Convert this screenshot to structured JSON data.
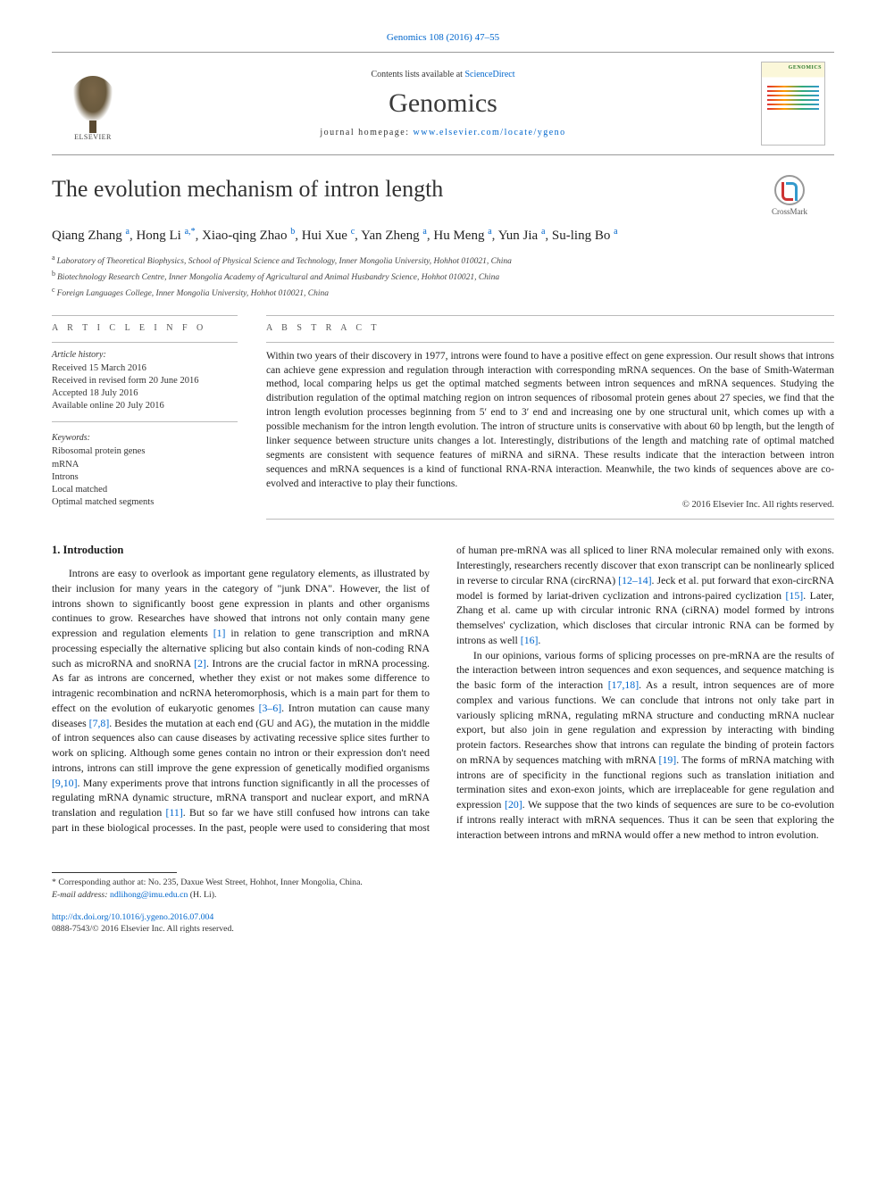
{
  "top_ref": {
    "journal": "Genomics",
    "vol_pages": "108 (2016) 47–55",
    "link_text": "Genomics 108 (2016) 47–55"
  },
  "header": {
    "contents_prefix": "Contents lists available at ",
    "contents_link": "ScienceDirect",
    "journal_name": "Genomics",
    "homepage_prefix": "journal homepage: ",
    "homepage_link": "www.elsevier.com/locate/ygeno",
    "publisher_label": "ELSEVIER",
    "cover_label": "GENOMICS"
  },
  "crossmark_label": "CrossMark",
  "title": "The evolution mechanism of intron length",
  "authors": [
    {
      "name": "Qiang Zhang",
      "aff": "a"
    },
    {
      "name": "Hong Li",
      "aff": "a",
      "corr": true
    },
    {
      "name": "Xiao-qing Zhao",
      "aff": "b"
    },
    {
      "name": "Hui Xue",
      "aff": "c"
    },
    {
      "name": "Yan Zheng",
      "aff": "a"
    },
    {
      "name": "Hu Meng",
      "aff": "a"
    },
    {
      "name": "Yun Jia",
      "aff": "a"
    },
    {
      "name": "Su-ling Bo",
      "aff": "a"
    }
  ],
  "affiliations": {
    "a": "Laboratory of Theoretical Biophysics, School of Physical Science and Technology, Inner Mongolia University, Hohhot 010021, China",
    "b": "Biotechnology Research Centre, Inner Mongolia Academy of Agricultural and Animal Husbandry Science, Hohhot 010021, China",
    "c": "Foreign Languages College, Inner Mongolia University, Hohhot 010021, China"
  },
  "article_info_label": "A R T I C L E   I N F O",
  "abstract_label": "A B S T R A C T",
  "history": {
    "head": "Article history:",
    "received": "Received 15 March 2016",
    "revised": "Received in revised form 20 June 2016",
    "accepted": "Accepted 18 July 2016",
    "online": "Available online 20 July 2016"
  },
  "keywords": {
    "head": "Keywords:",
    "items": [
      "Ribosomal protein genes",
      "mRNA",
      "Introns",
      "Local matched",
      "Optimal matched segments"
    ]
  },
  "abstract_text": "Within two years of their discovery in 1977, introns were found to have a positive effect on gene expression. Our result shows that introns can achieve gene expression and regulation through interaction with corresponding mRNA sequences. On the base of Smith-Waterman method, local comparing helps us get the optimal matched segments between intron sequences and mRNA sequences. Studying the distribution regulation of the optimal matching region on intron sequences of ribosomal protein genes about 27 species, we find that the intron length evolution processes beginning from 5′ end to 3′ end and increasing one by one structural unit, which comes up with a possible mechanism for the intron length evolution. The intron of structure units is conservative with about 60 bp length, but the length of linker sequence between structure units changes a lot. Interestingly, distributions of the length and matching rate of optimal matched segments are consistent with sequence features of miRNA and siRNA. These results indicate that the interaction between intron sequences and mRNA sequences is a kind of functional RNA-RNA interaction. Meanwhile, the two kinds of sequences above are co-evolved and interactive to play their functions.",
  "copyright": "© 2016 Elsevier Inc. All rights reserved.",
  "intro_heading": "1. Introduction",
  "body": {
    "p1a": "Introns are easy to overlook as important gene regulatory elements, as illustrated by their inclusion for many years in the category of \"junk DNA\". However, the list of introns shown to significantly boost gene expression in plants and other organisms continues to grow. Researches have showed that introns not only contain many gene expression and regulation elements ",
    "r1": "[1]",
    "p1b": " in relation to gene transcription and mRNA processing especially the alternative splicing but also contain kinds of non-coding RNA such as microRNA and snoRNA ",
    "r2": "[2]",
    "p1c": ". Introns are the crucial factor in mRNA processing. As far as introns are concerned, whether they exist or not makes some difference to intragenic recombination and ncRNA heteromorphosis, which is a main part for them to effect on the evolution of eukaryotic genomes ",
    "r3_6": "[3–6]",
    "p1d": ". Intron mutation can cause many diseases ",
    "r7_8": "[7,8]",
    "p1e": ". Besides the mutation at each end (GU and AG), the mutation in the middle of intron sequences also can cause diseases by activating recessive splice sites further to work on splicing. Although some genes contain no intron or their expression don't need introns, introns can still improve the gene expression of genetically modified organisms ",
    "r9_10": "[9,10]",
    "p1f": ". Many experiments prove that introns function significantly in all the processes of regulating mRNA dynamic structure, mRNA transport and nuclear export, and mRNA translation and regulation ",
    "r11": "[11]",
    "p1g": ". But so far we have still confused how introns can take part in these biological processes. In the past, people were used to considering that most of human pre-mRNA was all spliced to liner RNA molecular remained only with exons. Interestingly, researchers recently discover that exon transcript can be nonlinearly spliced in reverse to circular RNA (circRNA) ",
    "r12_14": "[12–14]",
    "p1h": ". Jeck et al. put forward that exon-circRNA model is formed by lariat-driven cyclization and introns-paired cyclization ",
    "r15": "[15]",
    "p1i": ". Later, Zhang et al. came up with circular intronic RNA (ciRNA) model formed by introns themselves' cyclization, which discloses that circular intronic RNA can be formed by introns as well ",
    "r16": "[16]",
    "p1j": ".",
    "p2a": "In our opinions, various forms of splicing processes on pre-mRNA are the results of the interaction between intron sequences and exon sequences, and sequence matching is the basic form of the interaction ",
    "r17_18": "[17,18]",
    "p2b": ". As a result, intron sequences are of more complex and various functions. We can conclude that introns not only take part in variously splicing mRNA, regulating mRNA structure and conducting mRNA nuclear export, but also join in gene regulation and expression by interacting with binding protein factors. Researches show that introns can regulate the binding of protein factors on mRNA by sequences matching with mRNA ",
    "r19": "[19]",
    "p2c": ". The forms of mRNA matching with introns are of specificity in the functional regions such as translation initiation and termination sites and exon-exon joints, which are irreplaceable for gene regulation and expression ",
    "r20": "[20]",
    "p2d": ". We suppose that the two kinds of sequences are sure to be co-evolution if introns really interact with mRNA sequences. Thus it can be seen that exploring the interaction between introns and mRNA would offer a new method to intron evolution."
  },
  "corresponding": {
    "star": "*",
    "text": "Corresponding author at: No. 235, Daxue West Street, Hohhot, Inner Mongolia, China.",
    "email_label": "E-mail address: ",
    "email": "ndlihong@imu.edu.cn",
    "email_tail": " (H. Li)."
  },
  "footer": {
    "doi": "http://dx.doi.org/10.1016/j.ygeno.2016.07.004",
    "issn_line": "0888-7543/© 2016 Elsevier Inc. All rights reserved."
  },
  "colors": {
    "link": "#0066cc",
    "text": "#1a1a1a",
    "rule": "#bbbbbb"
  }
}
